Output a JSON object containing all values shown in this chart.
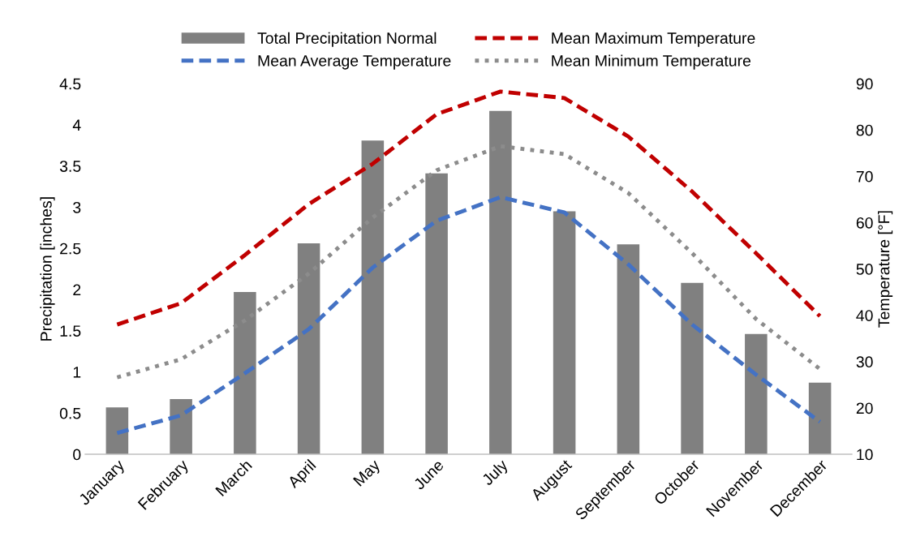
{
  "chart_data": {
    "type": "bar",
    "ylabel": "Precipitation [inches]",
    "y2label": "Temperature [°F]",
    "categories": [
      "January",
      "February",
      "March",
      "April",
      "May",
      "June",
      "July",
      "August",
      "September",
      "October",
      "November",
      "December"
    ],
    "series": [
      {
        "name": "Total Precipitation Normal",
        "color": "#808080",
        "values": [
          0.57,
          0.67,
          1.97,
          2.56,
          3.81,
          3.41,
          4.17,
          2.95,
          2.55,
          2.08,
          1.46,
          0.87
        ]
      },
      {
        "name": "Mean Average Temperature",
        "type": "line",
        "axis": "y2",
        "line_style": "dashed",
        "color": "#4472c4",
        "values": [
          14.6,
          18.4,
          27.5,
          37,
          50.3,
          60.4,
          65.5,
          62.2,
          51,
          38,
          27.2,
          17
        ]
      },
      {
        "name": "Mean Maximum Temperature",
        "type": "line",
        "axis": "y2",
        "line_style": "dashed",
        "color": "#c00000",
        "values": [
          38,
          42.6,
          53,
          64,
          72.7,
          83.4,
          88.3,
          86.9,
          78.6,
          66.7,
          53.4,
          39.8
        ]
      },
      {
        "name": "Mean Minimum Temperature",
        "type": "line",
        "axis": "y2",
        "line_style": "dotted",
        "color": "#8c8c8c",
        "values": [
          26.6,
          30.5,
          38.9,
          49,
          61.1,
          71.3,
          76.5,
          74.8,
          66.4,
          53.4,
          39.2,
          28.4
        ]
      }
    ],
    "ylim": [
      0,
      4.5
    ],
    "yticks": [
      0,
      0.5,
      1,
      1.5,
      2,
      2.5,
      3,
      3.5,
      4,
      4.5
    ],
    "y2lim": [
      10,
      90
    ],
    "y2ticks": [
      10,
      20,
      30,
      40,
      50,
      60,
      70,
      80,
      90
    ],
    "grid": false,
    "legend": "top"
  }
}
